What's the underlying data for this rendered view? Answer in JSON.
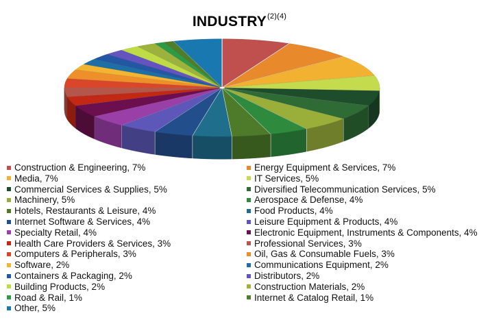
{
  "title": "INDUSTRY",
  "title_superscript": "(2)(4)",
  "chart_data": {
    "type": "pie",
    "title": "INDUSTRY(2)(4)",
    "unit": "%",
    "style": "3d-exploded-slices",
    "legend_placement": "bottom, two columns",
    "slices": [
      {
        "label": "Construction & Engineering",
        "display": "Construction & Engineering, 7%",
        "value": 7,
        "color": "#C0504D"
      },
      {
        "label": "Energy Equipment & Services",
        "display": "Energy Equipment & Services, 7%",
        "value": 7,
        "color": "#E8892B"
      },
      {
        "label": "Media",
        "display": "Media, 7%",
        "value": 7,
        "color": "#F2B130"
      },
      {
        "label": "IT Services",
        "display": "IT Services, 5%",
        "value": 5,
        "color": "#C4DB4E"
      },
      {
        "label": "Commercial Services & Supplies",
        "display": "Commercial Services & Supplies, 5%",
        "value": 5,
        "color": "#1E4D2B"
      },
      {
        "label": "Diversified Telecommunication Services",
        "display": "Diversified Telecommunication Services, 5%",
        "value": 5,
        "color": "#2E6B35"
      },
      {
        "label": "Machinery",
        "display": "Machinery, 5%",
        "value": 5,
        "color": "#9AAF3A"
      },
      {
        "label": "Aerospace & Defense",
        "display": "Aerospace & Defense, 4%",
        "value": 4,
        "color": "#2E8B3E"
      },
      {
        "label": "Hotels, Restaurants & Leisure",
        "display": "Hotels, Restaurants & Leisure, 4%",
        "value": 4,
        "color": "#4E7B2A"
      },
      {
        "label": "Food Products",
        "display": "Food Products, 4%",
        "value": 4,
        "color": "#1F6E8C"
      },
      {
        "label": "Internet Software & Services",
        "display": "Internet Software & Services, 4%",
        "value": 4,
        "color": "#234E8C"
      },
      {
        "label": "Leisure Equipment & Products",
        "display": "Leisure Equipment & Products, 4%",
        "value": 4,
        "color": "#5C57B8"
      },
      {
        "label": "Specialty Retail",
        "display": "Specialty Retail, 4%",
        "value": 4,
        "color": "#9B3FA8"
      },
      {
        "label": "Electronic Equipment, Instruments & Components",
        "display": "Electronic Equipment, Instruments & Components, 4%",
        "value": 4,
        "color": "#6B0F4E"
      },
      {
        "label": "Health Care Providers & Services",
        "display": "Health Care Providers & Services, 3%",
        "value": 3,
        "color": "#C22814"
      },
      {
        "label": "Professional Services",
        "display": "Professional Services, 3%",
        "value": 3,
        "color": "#B5564A"
      },
      {
        "label": "Computers & Peripherals",
        "display": "Computers & Peripherals, 3%",
        "value": 3,
        "color": "#D9462A"
      },
      {
        "label": "Oil, Gas & Consumable Fuels",
        "display": "Oil, Gas & Consumable Fuels, 3%",
        "value": 3,
        "color": "#EE8F2C"
      },
      {
        "label": "Software",
        "display": "Software, 2%",
        "value": 2,
        "color": "#F3B431"
      },
      {
        "label": "Communications Equipment",
        "display": "Communications Equipment, 2%",
        "value": 2,
        "color": "#1E6FA6"
      },
      {
        "label": "Containers & Packaging",
        "display": "Containers & Packaging, 2%",
        "value": 2,
        "color": "#2457A3"
      },
      {
        "label": "Distributors",
        "display": "Distributors, 2%",
        "value": 2,
        "color": "#6553C0"
      },
      {
        "label": "Building Products",
        "display": "Building Products, 2%",
        "value": 2,
        "color": "#BFDB45"
      },
      {
        "label": "Construction Materials",
        "display": "Construction Materials, 2%",
        "value": 2,
        "color": "#9DB23C"
      },
      {
        "label": "Road & Rail",
        "display": "Road & Rail, 1%",
        "value": 1,
        "color": "#2F9A45"
      },
      {
        "label": "Internet & Catalog Retail",
        "display": "Internet & Catalog Retail, 1%",
        "value": 1,
        "color": "#4F7E2A"
      },
      {
        "label": "Other",
        "display": "Other, 5%",
        "value": 5,
        "color": "#1A78B0"
      }
    ]
  }
}
